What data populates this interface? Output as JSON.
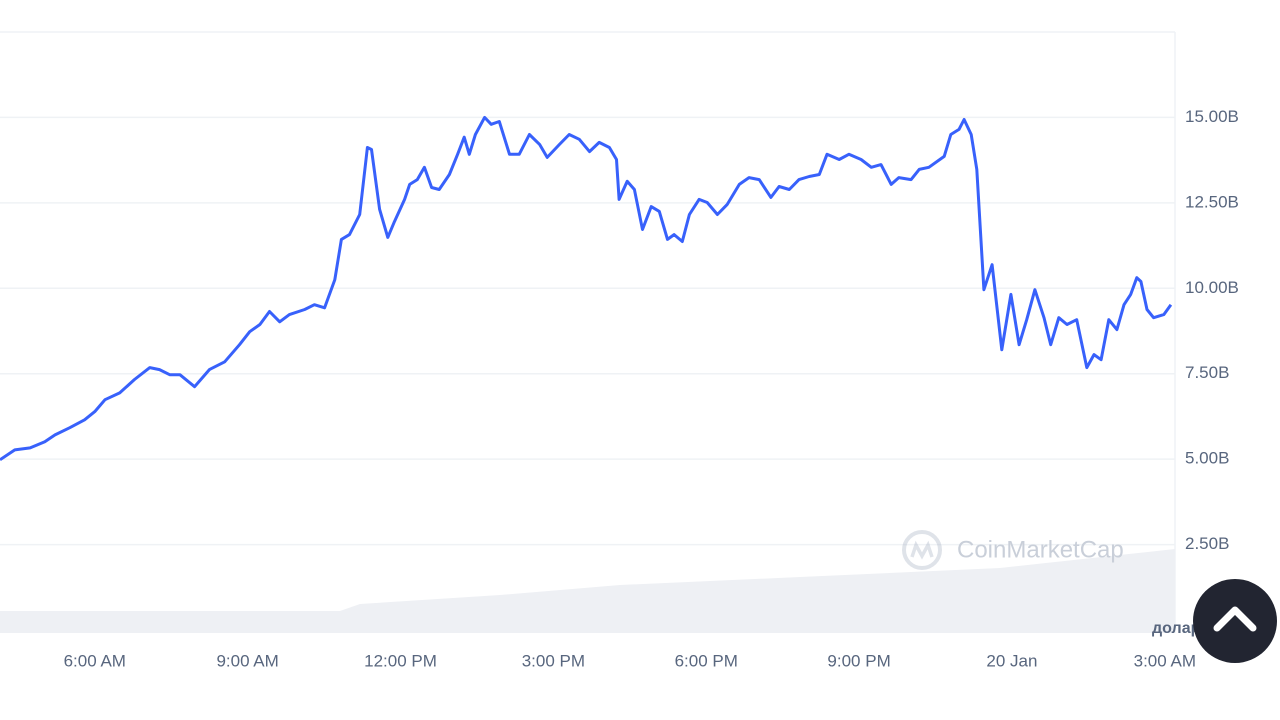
{
  "chart_data": {
    "type": "line",
    "color": "#3861fb",
    "grid": true,
    "watermark": "CoinMarketCap",
    "unit_label": "долари США",
    "xlim": [
      4.14,
      27.2
    ],
    "ylim": [
      0,
      17.5
    ],
    "xticks": [
      {
        "value": 6,
        "label": "6:00 AM"
      },
      {
        "value": 9,
        "label": "9:00 AM"
      },
      {
        "value": 12,
        "label": "12:00 PM"
      },
      {
        "value": 15,
        "label": "3:00 PM"
      },
      {
        "value": 18,
        "label": "6:00 PM"
      },
      {
        "value": 21,
        "label": "9:00 PM"
      },
      {
        "value": 24,
        "label": "20 Jan"
      },
      {
        "value": 27,
        "label": "3:00 AM"
      }
    ],
    "yticks": [
      {
        "value": 2.5,
        "label": "2.50B"
      },
      {
        "value": 5,
        "label": "5.00B"
      },
      {
        "value": 7.5,
        "label": "7.50B"
      },
      {
        "value": 10,
        "label": "10.00B"
      },
      {
        "value": 12.5,
        "label": "12.50B"
      },
      {
        "value": 15,
        "label": "15.00B"
      }
    ],
    "x": [
      4.14,
      4.43,
      4.73,
      5.02,
      5.22,
      5.51,
      5.8,
      6.0,
      6.2,
      6.49,
      6.78,
      7.08,
      7.27,
      7.47,
      7.67,
      7.96,
      8.25,
      8.55,
      8.84,
      9.04,
      9.24,
      9.43,
      9.63,
      9.82,
      10.12,
      10.31,
      10.51,
      10.71,
      10.84,
      11.0,
      11.2,
      11.35,
      11.43,
      11.59,
      11.75,
      11.88,
      12.08,
      12.18,
      12.33,
      12.47,
      12.61,
      12.76,
      12.96,
      13.12,
      13.25,
      13.35,
      13.47,
      13.65,
      13.78,
      13.94,
      14.14,
      14.33,
      14.53,
      14.73,
      14.88,
      15.12,
      15.31,
      15.51,
      15.71,
      15.9,
      16.1,
      16.24,
      16.29,
      16.45,
      16.59,
      16.75,
      16.92,
      17.08,
      17.24,
      17.37,
      17.53,
      17.67,
      17.86,
      18.02,
      18.22,
      18.41,
      18.65,
      18.84,
      19.04,
      19.27,
      19.43,
      19.63,
      19.82,
      20.02,
      20.22,
      20.37,
      20.61,
      20.8,
      21.04,
      21.24,
      21.43,
      21.63,
      21.78,
      22.02,
      22.18,
      22.37,
      22.67,
      22.8,
      22.96,
      23.06,
      23.2,
      23.31,
      23.45,
      23.61,
      23.8,
      23.98,
      24.14,
      24.29,
      24.45,
      24.63,
      24.76,
      24.92,
      25.08,
      25.27,
      25.47,
      25.61,
      25.75,
      25.9,
      26.06,
      26.2,
      26.33,
      26.45,
      26.53,
      26.65,
      26.78,
      26.98,
      27.12
    ],
    "values": [
      4.98,
      5.27,
      5.33,
      5.51,
      5.71,
      5.92,
      6.15,
      6.39,
      6.74,
      6.94,
      7.33,
      7.68,
      7.62,
      7.47,
      7.47,
      7.12,
      7.62,
      7.85,
      8.35,
      8.73,
      8.94,
      9.32,
      9.02,
      9.23,
      9.38,
      9.52,
      9.43,
      10.25,
      11.43,
      11.57,
      12.16,
      14.12,
      14.06,
      12.31,
      11.49,
      11.95,
      12.6,
      13.04,
      13.18,
      13.54,
      12.95,
      12.89,
      13.33,
      13.92,
      14.42,
      13.92,
      14.5,
      15.0,
      14.8,
      14.88,
      13.92,
      13.92,
      14.5,
      14.21,
      13.83,
      14.21,
      14.5,
      14.36,
      14.0,
      14.27,
      14.12,
      13.77,
      12.6,
      13.13,
      12.89,
      11.72,
      12.39,
      12.25,
      11.43,
      11.57,
      11.37,
      12.16,
      12.6,
      12.51,
      12.16,
      12.45,
      13.04,
      13.24,
      13.18,
      12.66,
      12.98,
      12.89,
      13.18,
      13.27,
      13.33,
      13.92,
      13.77,
      13.92,
      13.77,
      13.54,
      13.62,
      13.04,
      13.24,
      13.18,
      13.48,
      13.54,
      13.86,
      14.5,
      14.65,
      14.94,
      14.5,
      13.48,
      9.96,
      10.69,
      8.2,
      9.82,
      8.35,
      9.08,
      9.96,
      9.14,
      8.35,
      9.14,
      8.94,
      9.08,
      7.68,
      8.06,
      7.91,
      9.08,
      8.79,
      9.52,
      9.82,
      10.31,
      10.2,
      9.38,
      9.14,
      9.23,
      9.52
    ]
  }
}
